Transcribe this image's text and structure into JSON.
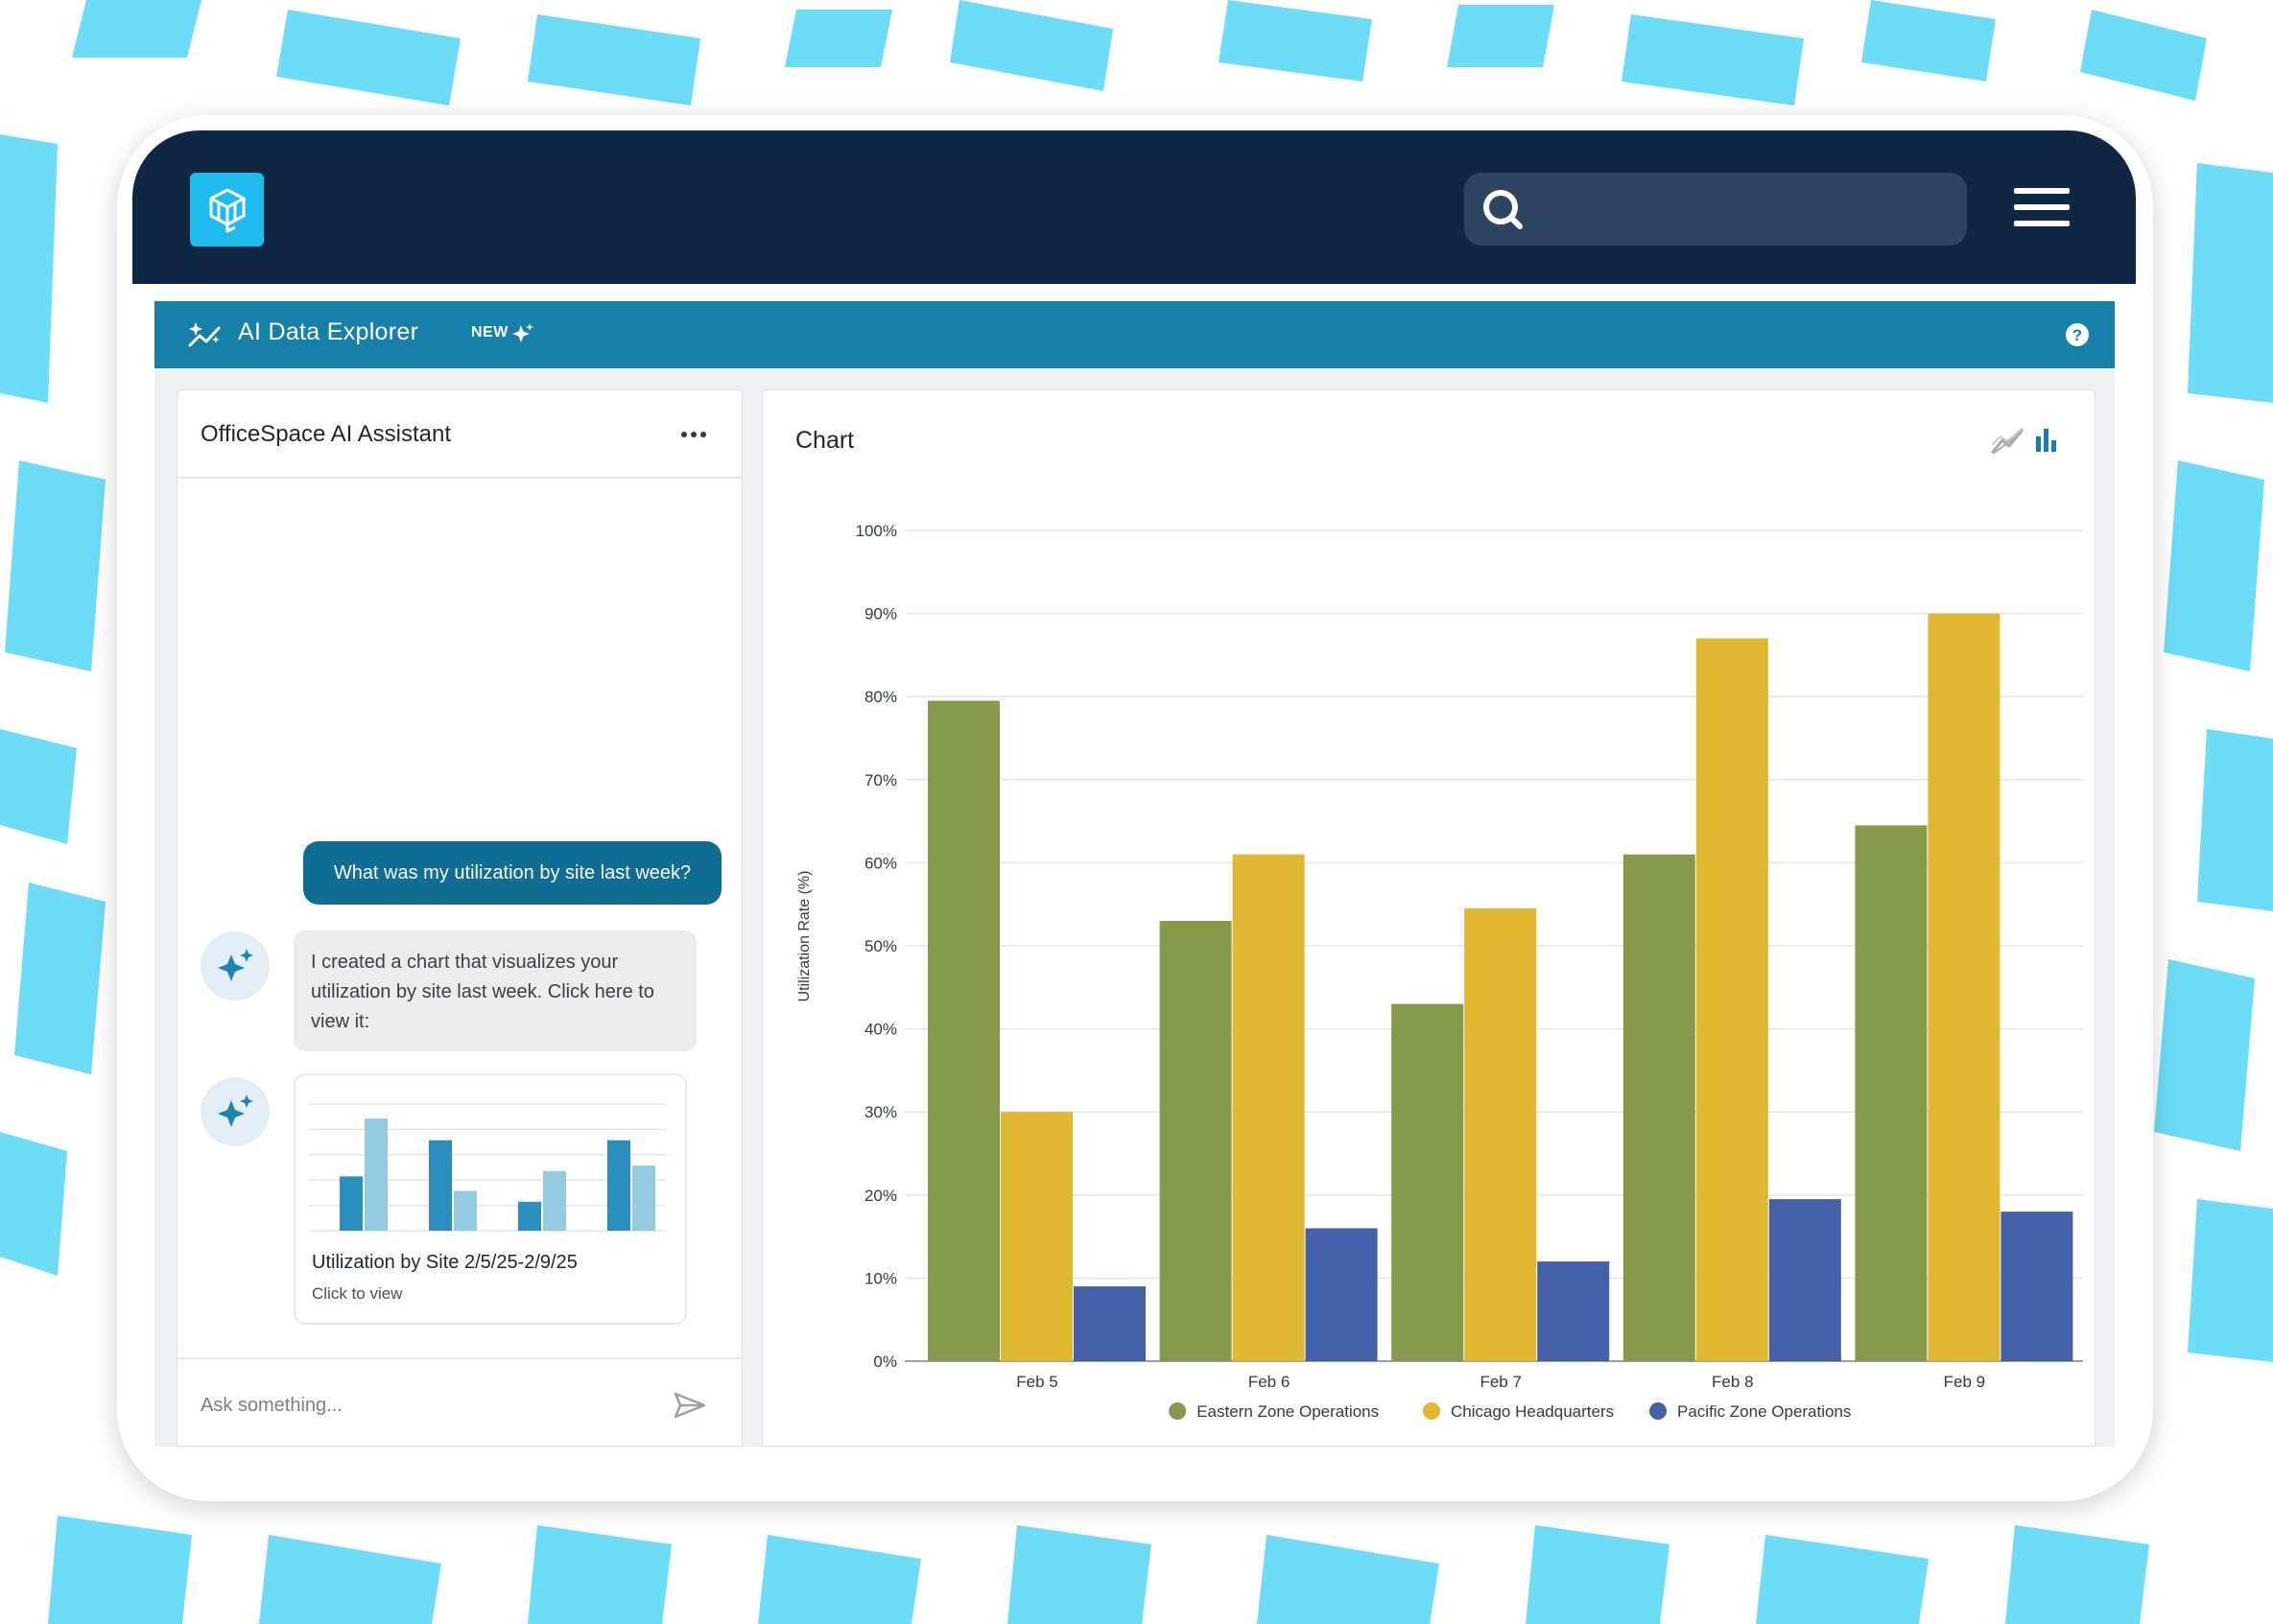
{
  "topbar": {
    "logo_icon": "officespace-logo-icon",
    "search_icon": "search-icon",
    "search_placeholder": "",
    "menu_icon": "hamburger-menu-icon"
  },
  "subbar": {
    "title": "AI Data Explorer",
    "badge": "NEW",
    "help_icon": "help-icon",
    "color": "#1780a9"
  },
  "assistant": {
    "title": "OfficeSpace AI Assistant",
    "user_message": "What was my utilization by site last week?",
    "ai_message": "I created a chart that visualizes your utilization by site last week. Click here to view it:",
    "card_title": "Utilization by Site 2/5/25-2/9/25",
    "card_subtitle": "Click to view",
    "input_placeholder": "Ask something...",
    "send_icon": "send-icon"
  },
  "chart_panel": {
    "title": "Chart",
    "line_toggle_icon": "line-chart-icon",
    "bar_toggle_icon": "bar-chart-icon"
  },
  "chart_data": {
    "type": "bar",
    "title": "Chart",
    "xlabel": "",
    "ylabel": "Utilization Rate (%)",
    "ylim": [
      0,
      100
    ],
    "y_ticks": [
      0,
      10,
      20,
      30,
      40,
      50,
      60,
      70,
      80,
      90,
      100
    ],
    "y_tick_suffix": "%",
    "grid": true,
    "legend_position": "bottom-center",
    "categories": [
      "Feb 5",
      "Feb 6",
      "Feb 7",
      "Feb 8",
      "Feb 9"
    ],
    "series": [
      {
        "name": "Eastern Zone Operations",
        "color": "#87994b",
        "values": [
          79.5,
          53,
          43,
          61,
          64.5
        ]
      },
      {
        "name": "Chicago Headquarters",
        "color": "#e0b731",
        "values": [
          30,
          61,
          54.5,
          87,
          90
        ]
      },
      {
        "name": "Pacific Zone Operations",
        "color": "#4460a8",
        "values": [
          9,
          16,
          12,
          19.5,
          18
        ]
      }
    ]
  },
  "mini_chart_data": {
    "type": "bar",
    "groups": 4,
    "series": [
      {
        "name": "series-1",
        "color": "#2a8fbe",
        "values": [
          3,
          5,
          1.6,
          5
        ]
      },
      {
        "name": "series-2",
        "color": "#94cbe0",
        "values": [
          6.2,
          2.2,
          3.3,
          3.6
        ]
      }
    ],
    "ylim": [
      0,
      7
    ]
  }
}
